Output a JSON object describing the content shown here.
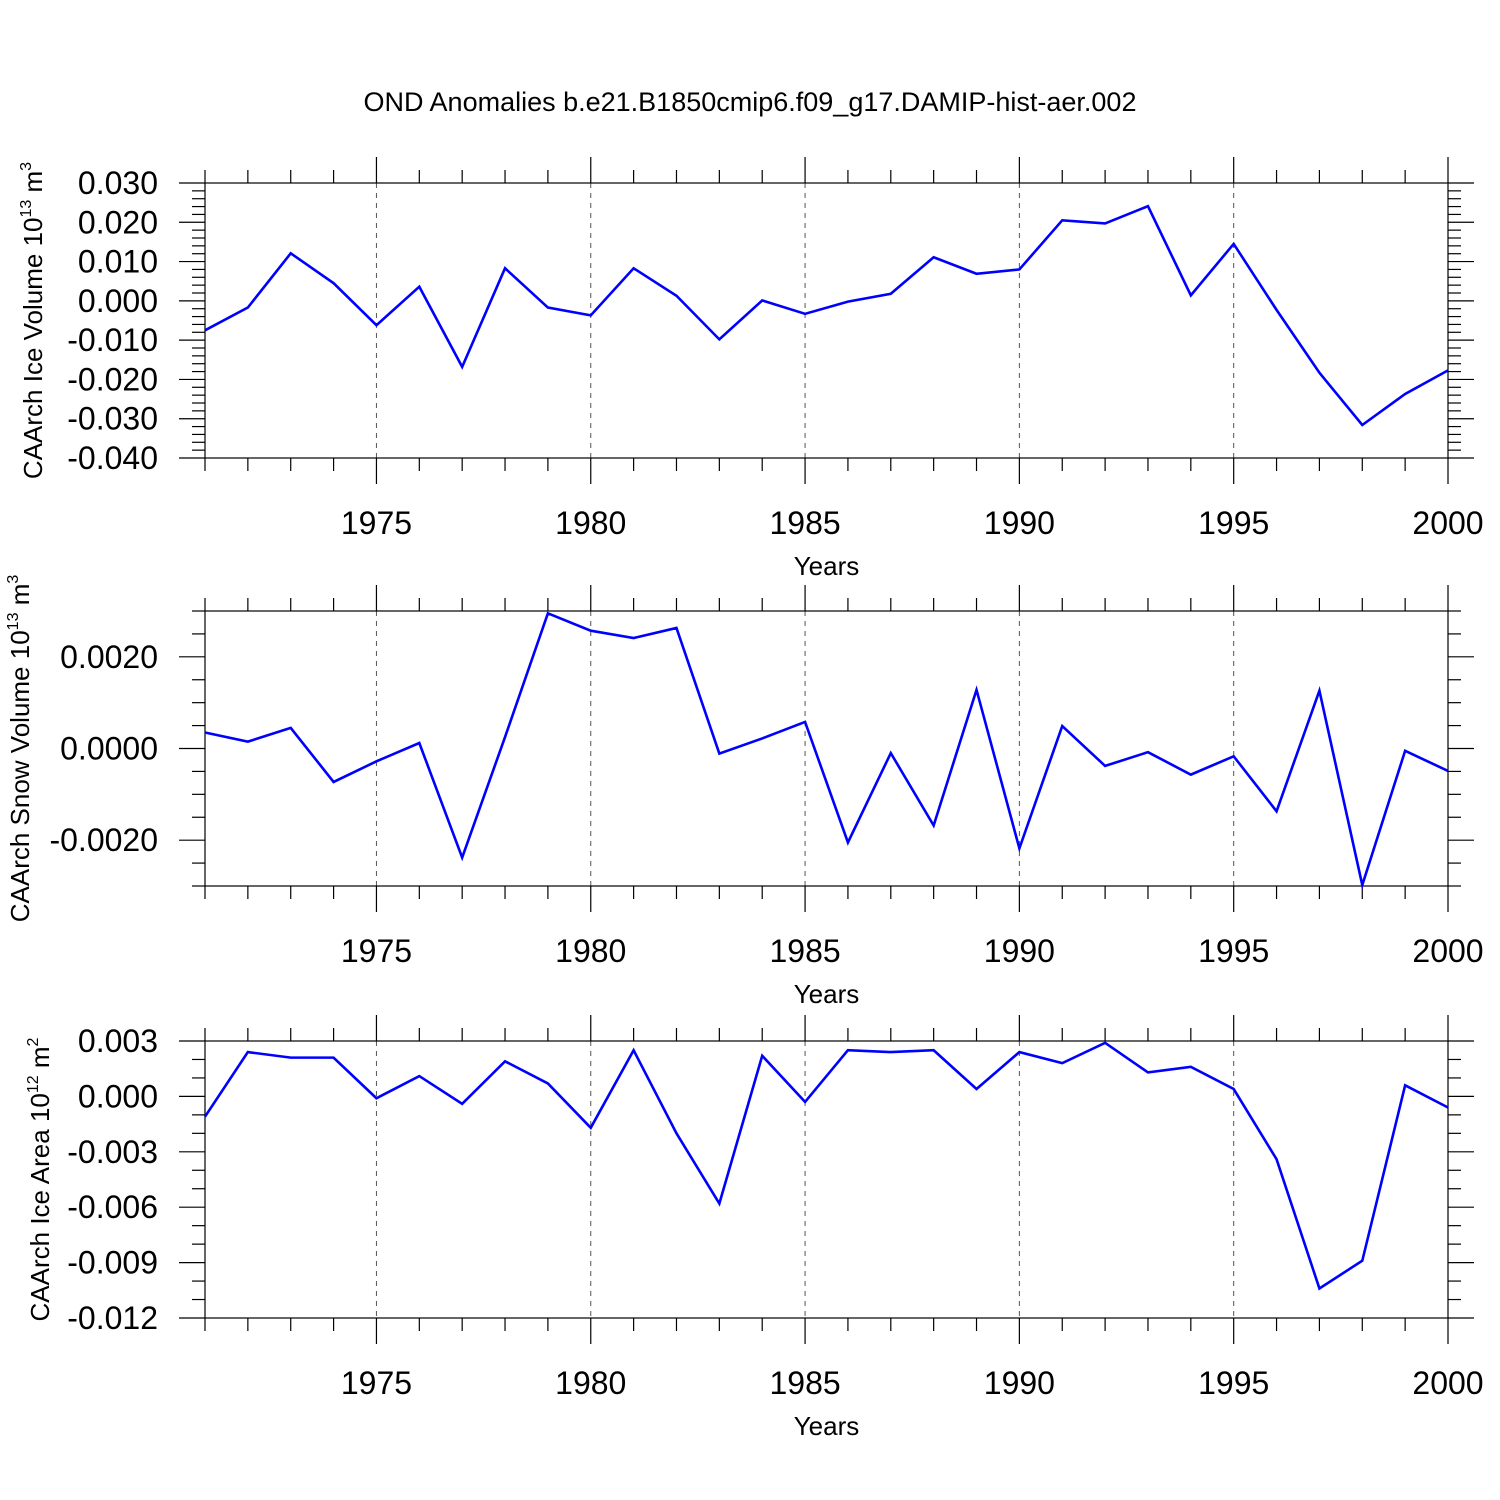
{
  "title": "OND Anomalies b.e21.B1850cmip6.f09_g17.DAMIP-hist-aer.002",
  "chart_data": [
    {
      "type": "line",
      "ylabel": "CAArch Ice Volume 10",
      "ylabel_exp": "13",
      "ylabel_unit": "m",
      "ylabel_unit_exp": "3",
      "xlabel": "Years",
      "xlim": [
        1971,
        2000
      ],
      "ylim": [
        -0.04,
        0.03
      ],
      "yticks": [
        0.03,
        0.02,
        0.01,
        0.0,
        -0.01,
        -0.02,
        -0.03,
        -0.04
      ],
      "ytick_labels": [
        "0.030",
        "0.020",
        "0.010",
        "0.000",
        "-0.010",
        "-0.020",
        "-0.030",
        "-0.040"
      ],
      "yminor_step": 0.002,
      "xticks": [
        1975,
        1980,
        1985,
        1990,
        1995,
        2000
      ],
      "xtick_labels": [
        "1975",
        "1980",
        "1985",
        "1990",
        "1995",
        "2000"
      ],
      "x": [
        1971,
        1972,
        1973,
        1974,
        1975,
        1976,
        1977,
        1978,
        1979,
        1980,
        1981,
        1982,
        1983,
        1984,
        1985,
        1986,
        1987,
        1988,
        1989,
        1990,
        1991,
        1992,
        1993,
        1994,
        1995,
        1996,
        1997,
        1998,
        1999,
        2000
      ],
      "values": [
        -0.0075,
        -0.0017,
        0.0121,
        0.0045,
        -0.0062,
        0.0036,
        -0.0168,
        0.0083,
        -0.0017,
        -0.0037,
        0.0083,
        0.0013,
        -0.0098,
        0.0001,
        -0.0033,
        -0.0002,
        0.0018,
        0.0111,
        0.0069,
        0.008,
        0.0205,
        0.0197,
        0.0241,
        0.0014,
        0.0145,
        -0.0023,
        -0.0183,
        -0.0316,
        -0.0237,
        -0.0177
      ],
      "color": "#0000ff"
    },
    {
      "type": "line",
      "ylabel": "CAArch Snow Volume 10",
      "ylabel_exp": "13",
      "ylabel_unit": "m",
      "ylabel_unit_exp": "3",
      "xlabel": "Years",
      "xlim": [
        1971,
        2000
      ],
      "ylim": [
        -0.003,
        0.003
      ],
      "yticks": [
        0.002,
        0.0,
        -0.002
      ],
      "ytick_labels": [
        "0.0020",
        "0.0000",
        "-0.0020"
      ],
      "yminor_step": 0.0005,
      "xticks": [
        1975,
        1980,
        1985,
        1990,
        1995,
        2000
      ],
      "xtick_labels": [
        "1975",
        "1980",
        "1985",
        "1990",
        "1995",
        "2000"
      ],
      "x": [
        1971,
        1972,
        1973,
        1974,
        1975,
        1976,
        1977,
        1978,
        1979,
        1980,
        1981,
        1982,
        1983,
        1984,
        1985,
        1986,
        1987,
        1988,
        1989,
        1990,
        1991,
        1992,
        1993,
        1994,
        1995,
        1996,
        1997,
        1998,
        1999,
        2000
      ],
      "values": [
        0.00035,
        0.00015,
        0.00045,
        -0.00073,
        -0.00028,
        0.00012,
        -0.00238,
        0.00025,
        0.00295,
        0.00257,
        0.00241,
        0.00263,
        -0.00011,
        0.00022,
        0.00058,
        -0.00205,
        -0.0001,
        -0.00168,
        0.00128,
        -0.00218,
        0.00049,
        -0.00038,
        -8e-05,
        -0.00057,
        -0.00017,
        -0.00137,
        0.00126,
        -0.00298,
        -5e-05,
        -0.00049
      ],
      "color": "#0000ff"
    },
    {
      "type": "line",
      "ylabel": "CAArch Ice Area 10",
      "ylabel_exp": "12",
      "ylabel_unit": "m",
      "ylabel_unit_exp": "2",
      "xlabel": "Years",
      "xlim": [
        1971,
        2000
      ],
      "ylim": [
        -0.012,
        0.003
      ],
      "yticks": [
        0.003,
        0.0,
        -0.003,
        -0.006,
        -0.009,
        -0.012
      ],
      "ytick_labels": [
        "0.003",
        "0.000",
        "-0.003",
        "-0.006",
        "-0.009",
        "-0.012"
      ],
      "yminor_step": 0.001,
      "xticks": [
        1975,
        1980,
        1985,
        1990,
        1995,
        2000
      ],
      "xtick_labels": [
        "1975",
        "1980",
        "1985",
        "1990",
        "1995",
        "2000"
      ],
      "x": [
        1971,
        1972,
        1973,
        1974,
        1975,
        1976,
        1977,
        1978,
        1979,
        1980,
        1981,
        1982,
        1983,
        1984,
        1985,
        1986,
        1987,
        1988,
        1989,
        1990,
        1991,
        1992,
        1993,
        1994,
        1995,
        1996,
        1997,
        1998,
        1999,
        2000
      ],
      "values": [
        -0.0011,
        0.0024,
        0.0021,
        0.0021,
        -0.0001,
        0.0011,
        -0.0004,
        0.0019,
        0.0007,
        -0.0017,
        0.0025,
        -0.002,
        -0.0058,
        0.0022,
        -0.0003,
        0.0025,
        0.0024,
        0.0025,
        0.0004,
        0.0024,
        0.0018,
        0.0029,
        0.0013,
        0.0016,
        0.0004,
        -0.0034,
        -0.0104,
        -0.0089,
        0.0006,
        -0.0006
      ],
      "color": "#0000ff"
    }
  ]
}
